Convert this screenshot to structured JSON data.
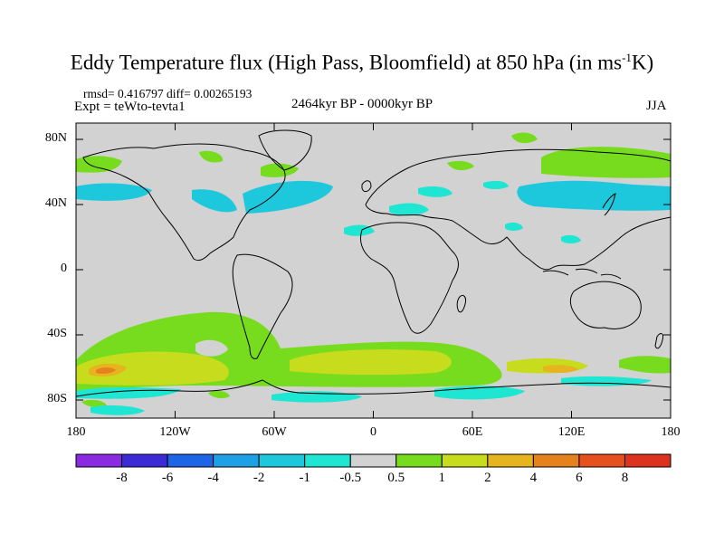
{
  "title": {
    "text": "Eddy Temperature flux (High Pass, Bloomfield) at 850 hPa (in ms",
    "sup": "-1",
    "suffix": "K)"
  },
  "stats": "rmsd= 0.416797 diff= 0.00265193",
  "expt": "Expt = teWto-tevta1",
  "period": "2464kyr BP - 0000kyr BP",
  "season": "JJA",
  "lat_ticks": [
    "80N",
    "40N",
    "0",
    "40S",
    "80S"
  ],
  "lon_ticks": [
    "180",
    "120W",
    "60W",
    "0",
    "60E",
    "120E",
    "180"
  ],
  "colorbar": {
    "labels": [
      "-8",
      "-6",
      "-4",
      "-2",
      "-1",
      "-0.5",
      "0.5",
      "1",
      "2",
      "4",
      "6",
      "8"
    ],
    "colors": [
      "#8a2be2",
      "#3a2bd6",
      "#1e64e6",
      "#1ea0e6",
      "#1ec8dc",
      "#1ee6d2",
      "#d2d2d2",
      "#78dc1e",
      "#c8dc1e",
      "#e6b41e",
      "#e6821e",
      "#e6501e",
      "#dc321e"
    ]
  },
  "colors": {
    "background_field": "#d2d2d2",
    "neg_weak": "#1ee6d2",
    "neg_mid": "#1ec8dc",
    "pos_weak": "#78dc1e",
    "pos_mid": "#c8dc1e",
    "pos_strong": "#e6b41e",
    "pos_max": "#e6821e"
  }
}
